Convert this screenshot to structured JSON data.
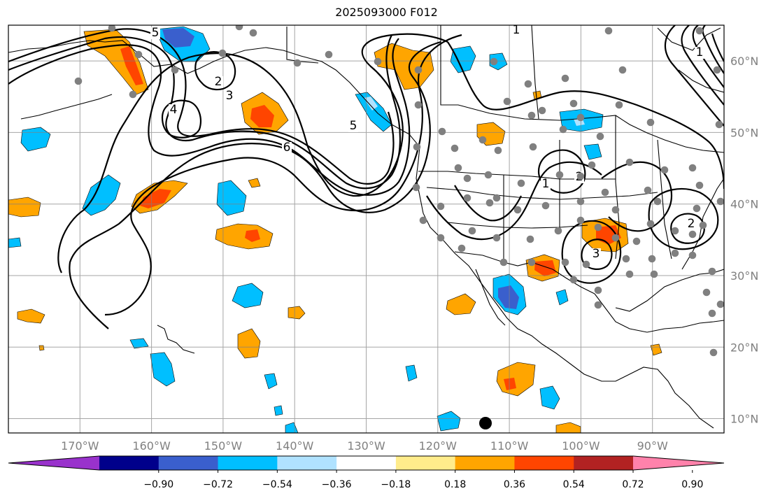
{
  "title": "2025093000 F012",
  "map": {
    "lon_range": [
      -180,
      -80
    ],
    "lat_range": [
      8,
      65
    ],
    "lon_ticks": [
      {
        "value": -170,
        "label": "170°W"
      },
      {
        "value": -160,
        "label": "160°W"
      },
      {
        "value": -150,
        "label": "150°W"
      },
      {
        "value": -140,
        "label": "140°W"
      },
      {
        "value": -130,
        "label": "130°W"
      },
      {
        "value": -120,
        "label": "120°W"
      },
      {
        "value": -110,
        "label": "110°W"
      },
      {
        "value": -100,
        "label": "100°W"
      },
      {
        "value": -90,
        "label": "90°W"
      }
    ],
    "lat_ticks": [
      {
        "value": 10,
        "label": "10°N"
      },
      {
        "value": 20,
        "label": "20°N"
      },
      {
        "value": 30,
        "label": "30°N"
      },
      {
        "value": 40,
        "label": "40°N"
      },
      {
        "value": 50,
        "label": "50°N"
      },
      {
        "value": 60,
        "label": "60°N"
      }
    ],
    "grid": true,
    "contour_labels": [
      "5",
      "2",
      "3",
      "4",
      "6",
      "5",
      "1",
      "1",
      "2",
      "3",
      "2",
      "1"
    ],
    "station_color": "#808080",
    "marker_color": "#000000"
  },
  "colorbar": {
    "colors": [
      "#9932cc",
      "#00008b",
      "#3a5fcd",
      "#00bfff",
      "#b0e2ff",
      "#ffffff",
      "#ffec8b",
      "#ffa500",
      "#ff4500",
      "#b22222",
      "#ff82ab"
    ],
    "tick_labels": [
      "−0.90",
      "−0.72",
      "−0.54",
      "−0.36",
      "−0.18",
      "0.18",
      "0.36",
      "0.54",
      "0.72",
      "0.90"
    ]
  }
}
